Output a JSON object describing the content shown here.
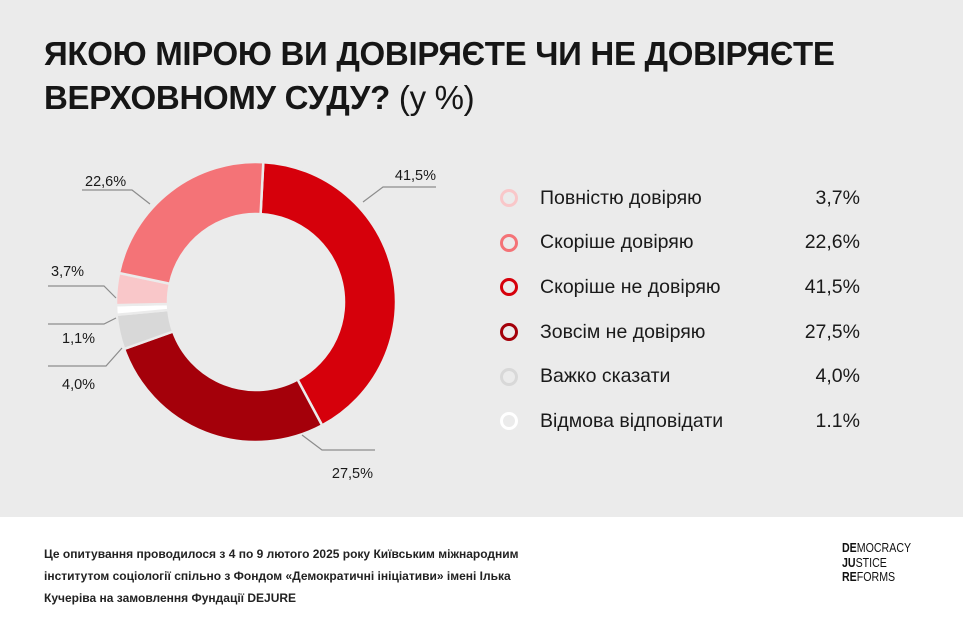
{
  "title": {
    "main": "Якою мірою ви довіряєте чи не довіряєте Верховному суду?",
    "unit": "(у %)"
  },
  "chart_data": {
    "type": "pie",
    "categories": [
      "Повністю довіряю",
      "Скоріше довіряю",
      "Скоріше не довіряю",
      "Зовсім не довіряю",
      "Важко сказати",
      "Відмова відповідати"
    ],
    "values": [
      3.7,
      22.6,
      41.5,
      27.5,
      4.0,
      1.1
    ],
    "value_labels": [
      "3,7%",
      "22,6%",
      "41,5%",
      "27,5%",
      "4,0%",
      "1,1%"
    ],
    "legend_values": [
      "3,7%",
      "22,6%",
      "41,5%",
      "27,5%",
      "4,0%",
      "1.1%"
    ],
    "colors": [
      "#f9c7c9",
      "#f47377",
      "#d6000b",
      "#a4000a",
      "#d8d8d8",
      "#ffffff"
    ],
    "donut": true,
    "legend_position": "right"
  },
  "footer": {
    "note": "Це опитування проводилося з 4 по 9 лютого 2025 року Київським міжнародним інститутом соціології спільно з Фондом «Демократичні ініціативи» імені Ілька Кучеріва на замовлення Фундації DEJURE",
    "logo": [
      {
        "b": "DE",
        "r": "MOCRACY"
      },
      {
        "b": "JU",
        "r": "STICE"
      },
      {
        "b": "RE",
        "r": "FORMS"
      }
    ]
  }
}
